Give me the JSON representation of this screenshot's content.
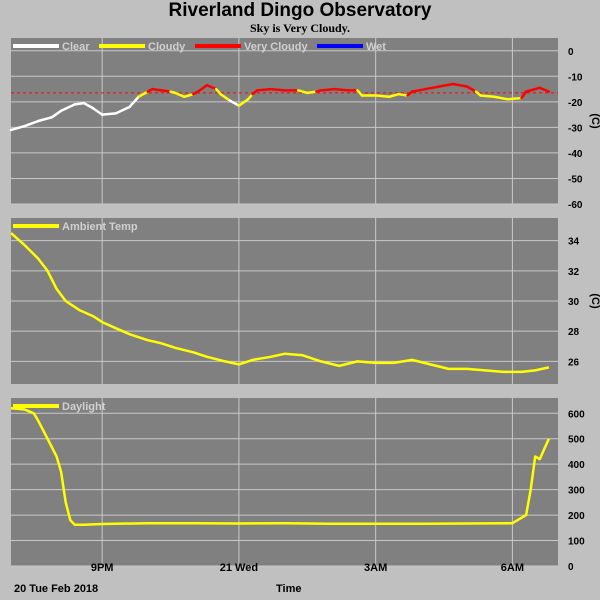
{
  "header": {
    "title": "Riverland Dingo Observatory",
    "subtitle": "Sky is Very Cloudy."
  },
  "footer": {
    "date_label": "20 Tue Feb 2018",
    "time_label": "Time"
  },
  "colors": {
    "background": "#c0c0c0",
    "plot_bg": "#808080",
    "grid": "#c8c8c8",
    "clear": "#ffffff",
    "cloudy": "#ffff00",
    "very_cloudy": "#ff0000",
    "wet": "#0000ff",
    "legend_text": "#d0d0d0"
  },
  "chart_data": [
    {
      "type": "line",
      "name": "sky",
      "ylabel": "(C)",
      "ylim": [
        -60,
        5
      ],
      "yticks": [
        0,
        -10,
        -20,
        -30,
        -40,
        -50,
        -60
      ],
      "xlim": [
        0,
        12
      ],
      "xticks": [
        {
          "x": 2,
          "label": "9PM"
        },
        {
          "x": 5,
          "label": "21 Wed"
        },
        {
          "x": 8,
          "label": "3AM"
        },
        {
          "x": 11,
          "label": "6AM"
        }
      ],
      "threshold": -16.5,
      "legend": [
        {
          "name": "Clear",
          "color": "#ffffff"
        },
        {
          "name": "Cloudy",
          "color": "#ffff00"
        },
        {
          "name": "Very Cloudy",
          "color": "#ff0000"
        },
        {
          "name": "Wet",
          "color": "#0000ff"
        }
      ],
      "points": [
        [
          0.0,
          -31
        ],
        [
          0.3,
          -29.5
        ],
        [
          0.6,
          -27.5
        ],
        [
          0.9,
          -26
        ],
        [
          1.1,
          -23.5
        ],
        [
          1.4,
          -21
        ],
        [
          1.6,
          -20.5
        ],
        [
          1.8,
          -22.5
        ],
        [
          2.0,
          -25
        ],
        [
          2.3,
          -24.5
        ],
        [
          2.6,
          -22
        ],
        [
          2.8,
          -18
        ],
        [
          3.0,
          -16
        ],
        [
          3.1,
          -15
        ],
        [
          3.3,
          -15.5
        ],
        [
          3.5,
          -16
        ],
        [
          3.6,
          -16.5
        ],
        [
          3.8,
          -18
        ],
        [
          4.0,
          -17
        ],
        [
          4.1,
          -16
        ],
        [
          4.3,
          -13.5
        ],
        [
          4.5,
          -15
        ],
        [
          4.6,
          -17
        ],
        [
          4.8,
          -19.5
        ],
        [
          5.0,
          -21.5
        ],
        [
          5.2,
          -19
        ],
        [
          5.3,
          -17
        ],
        [
          5.4,
          -15.5
        ],
        [
          5.7,
          -15
        ],
        [
          6.0,
          -15.5
        ],
        [
          6.3,
          -15.5
        ],
        [
          6.5,
          -16.5
        ],
        [
          6.7,
          -16
        ],
        [
          6.8,
          -15.5
        ],
        [
          7.1,
          -15
        ],
        [
          7.4,
          -15.5
        ],
        [
          7.6,
          -15.5
        ],
        [
          7.7,
          -17.5
        ],
        [
          8.0,
          -17.5
        ],
        [
          8.3,
          -18
        ],
        [
          8.5,
          -17
        ],
        [
          8.7,
          -17.5
        ],
        [
          8.8,
          -16
        ],
        [
          9.1,
          -15
        ],
        [
          9.4,
          -14
        ],
        [
          9.7,
          -13
        ],
        [
          10.0,
          -14
        ],
        [
          10.2,
          -16
        ],
        [
          10.3,
          -17.5
        ],
        [
          10.6,
          -18
        ],
        [
          10.9,
          -19
        ],
        [
          11.2,
          -18.5
        ],
        [
          11.3,
          -16
        ],
        [
          11.6,
          -14.5
        ],
        [
          11.8,
          -16
        ]
      ],
      "point_states": [
        "clear",
        "clear",
        "clear",
        "clear",
        "clear",
        "clear",
        "clear",
        "clear",
        "clear",
        "clear",
        "clear",
        "clear",
        "cloudy",
        "very_cloudy",
        "very_cloudy",
        "very_cloudy",
        "cloudy",
        "cloudy",
        "cloudy",
        "very_cloudy",
        "very_cloudy",
        "very_cloudy",
        "cloudy",
        "cloudy",
        "clear",
        "cloudy",
        "cloudy",
        "very_cloudy",
        "very_cloudy",
        "very_cloudy",
        "very_cloudy",
        "cloudy",
        "cloudy",
        "very_cloudy",
        "very_cloudy",
        "very_cloudy",
        "very_cloudy",
        "cloudy",
        "cloudy",
        "cloudy",
        "cloudy",
        "cloudy",
        "very_cloudy",
        "very_cloudy",
        "very_cloudy",
        "very_cloudy",
        "very_cloudy",
        "very_cloudy",
        "cloudy",
        "cloudy",
        "cloudy",
        "cloudy",
        "very_cloudy",
        "very_cloudy",
        "very_cloudy"
      ]
    },
    {
      "type": "line",
      "name": "ambient",
      "ylabel": "(C)",
      "ylim": [
        24.5,
        35.5
      ],
      "yticks": [
        34,
        32,
        30,
        28,
        26
      ],
      "xlim": [
        0,
        12
      ],
      "xticks": [
        {
          "x": 2,
          "label": "9PM"
        },
        {
          "x": 5,
          "label": "21 Wed"
        },
        {
          "x": 8,
          "label": "3AM"
        },
        {
          "x": 11,
          "label": "6AM"
        }
      ],
      "legend": [
        {
          "name": "Ambient Temp",
          "color": "#ffff00"
        }
      ],
      "x": [
        0,
        0.3,
        0.6,
        0.8,
        1.0,
        1.2,
        1.5,
        1.8,
        2.0,
        2.3,
        2.6,
        3.0,
        3.3,
        3.6,
        4.0,
        4.3,
        4.7,
        5.0,
        5.3,
        5.7,
        6.0,
        6.4,
        6.8,
        7.2,
        7.6,
        8.0,
        8.4,
        8.8,
        9.2,
        9.6,
        10.0,
        10.4,
        10.8,
        11.2,
        11.5,
        11.8
      ],
      "y": [
        34.5,
        33.7,
        32.8,
        32.0,
        30.8,
        30.0,
        29.4,
        29.0,
        28.6,
        28.2,
        27.8,
        27.4,
        27.2,
        26.9,
        26.6,
        26.3,
        26.0,
        25.8,
        26.1,
        26.3,
        26.5,
        26.4,
        26.0,
        25.7,
        26.0,
        25.9,
        25.9,
        26.1,
        25.8,
        25.5,
        25.5,
        25.4,
        25.3,
        25.3,
        25.4,
        25.6
      ]
    },
    {
      "type": "line",
      "name": "daylight",
      "ylabel": "",
      "ylim": [
        0,
        660
      ],
      "yticks": [
        600,
        500,
        400,
        300,
        200,
        100,
        0
      ],
      "xlim": [
        0,
        12
      ],
      "xticks": [
        {
          "x": 2,
          "label": "9PM"
        },
        {
          "x": 5,
          "label": "21 Wed"
        },
        {
          "x": 8,
          "label": "3AM"
        },
        {
          "x": 11,
          "label": "6AM"
        }
      ],
      "legend": [
        {
          "name": "Daylight",
          "color": "#ffff00"
        }
      ],
      "x": [
        0,
        0.3,
        0.5,
        0.6,
        0.8,
        1.0,
        1.1,
        1.2,
        1.3,
        1.4,
        1.6,
        2.0,
        3.0,
        4.0,
        5.0,
        6.0,
        7.0,
        8.0,
        9.0,
        10.0,
        11.0,
        11.3,
        11.4,
        11.5,
        11.6,
        11.7,
        11.8
      ],
      "y": [
        620,
        615,
        600,
        570,
        500,
        430,
        370,
        250,
        180,
        162,
        162,
        165,
        168,
        168,
        167,
        168,
        166,
        166,
        166,
        167,
        168,
        200,
        300,
        430,
        420,
        460,
        500
      ]
    }
  ]
}
